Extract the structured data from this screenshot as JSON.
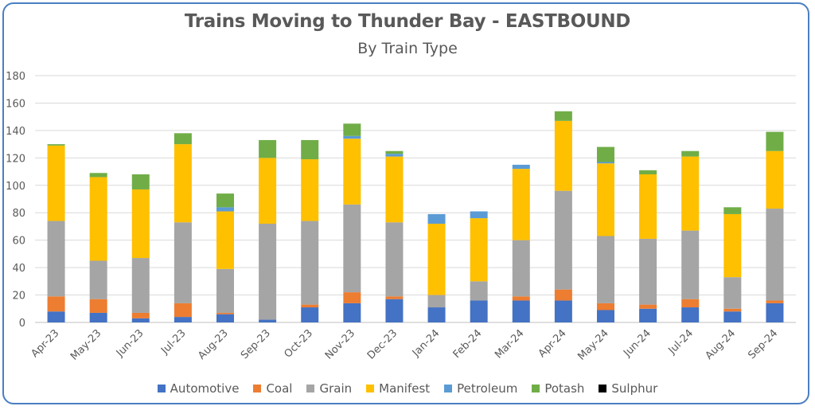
{
  "chart_data": {
    "type": "bar",
    "stacked": true,
    "title": "Trains Moving to Thunder Bay - EASTBOUND",
    "subtitle": "By Train Type",
    "ylim": [
      0,
      180
    ],
    "yticks": [
      0,
      20,
      40,
      60,
      80,
      100,
      120,
      140,
      160,
      180
    ],
    "grid": true,
    "legend": "bottom",
    "categories": [
      "Apr-23",
      "May-23",
      "Jun-23",
      "Jul-23",
      "Aug-23",
      "Sep-23",
      "Oct-23",
      "Nov-23",
      "Dec-23",
      "Jan-24",
      "Feb-24",
      "Mar-24",
      "Apr-24",
      "May-24",
      "Jun-24",
      "Jul-24",
      "Aug-24",
      "Sep-24"
    ],
    "series": [
      {
        "name": "Automotive",
        "color": "#4472c4",
        "values": [
          8,
          7,
          3,
          4,
          6,
          2,
          11,
          14,
          17,
          11,
          16,
          16,
          16,
          9,
          10,
          11,
          8,
          14
        ]
      },
      {
        "name": "Coal",
        "color": "#ed7d31",
        "values": [
          11,
          10,
          4,
          10,
          1,
          0,
          2,
          8,
          2,
          0,
          0,
          3,
          8,
          5,
          3,
          6,
          2,
          2
        ]
      },
      {
        "name": "Grain",
        "color": "#a5a5a5",
        "values": [
          55,
          28,
          40,
          59,
          32,
          70,
          61,
          64,
          54,
          9,
          14,
          41,
          72,
          49,
          48,
          50,
          23,
          67
        ]
      },
      {
        "name": "Manifest",
        "color": "#ffc000",
        "values": [
          55,
          61,
          50,
          57,
          42,
          48,
          45,
          48,
          48,
          52,
          46,
          52,
          51,
          53,
          47,
          54,
          46,
          42
        ]
      },
      {
        "name": "Petroleum",
        "color": "#5b9bd5",
        "values": [
          0,
          0,
          0,
          0,
          3,
          0,
          0,
          2,
          2,
          7,
          5,
          3,
          0,
          1,
          0,
          0,
          0,
          0
        ]
      },
      {
        "name": "Potash",
        "color": "#70ad47",
        "values": [
          1,
          3,
          11,
          8,
          10,
          13,
          14,
          9,
          2,
          0,
          0,
          0,
          7,
          11,
          3,
          4,
          5,
          14
        ]
      },
      {
        "name": "Sulphur",
        "color": "#000000",
        "values": [
          0,
          0,
          0,
          0,
          0,
          0,
          0,
          0,
          0,
          0,
          0,
          0,
          0,
          0,
          0,
          0,
          0,
          0
        ]
      }
    ]
  }
}
